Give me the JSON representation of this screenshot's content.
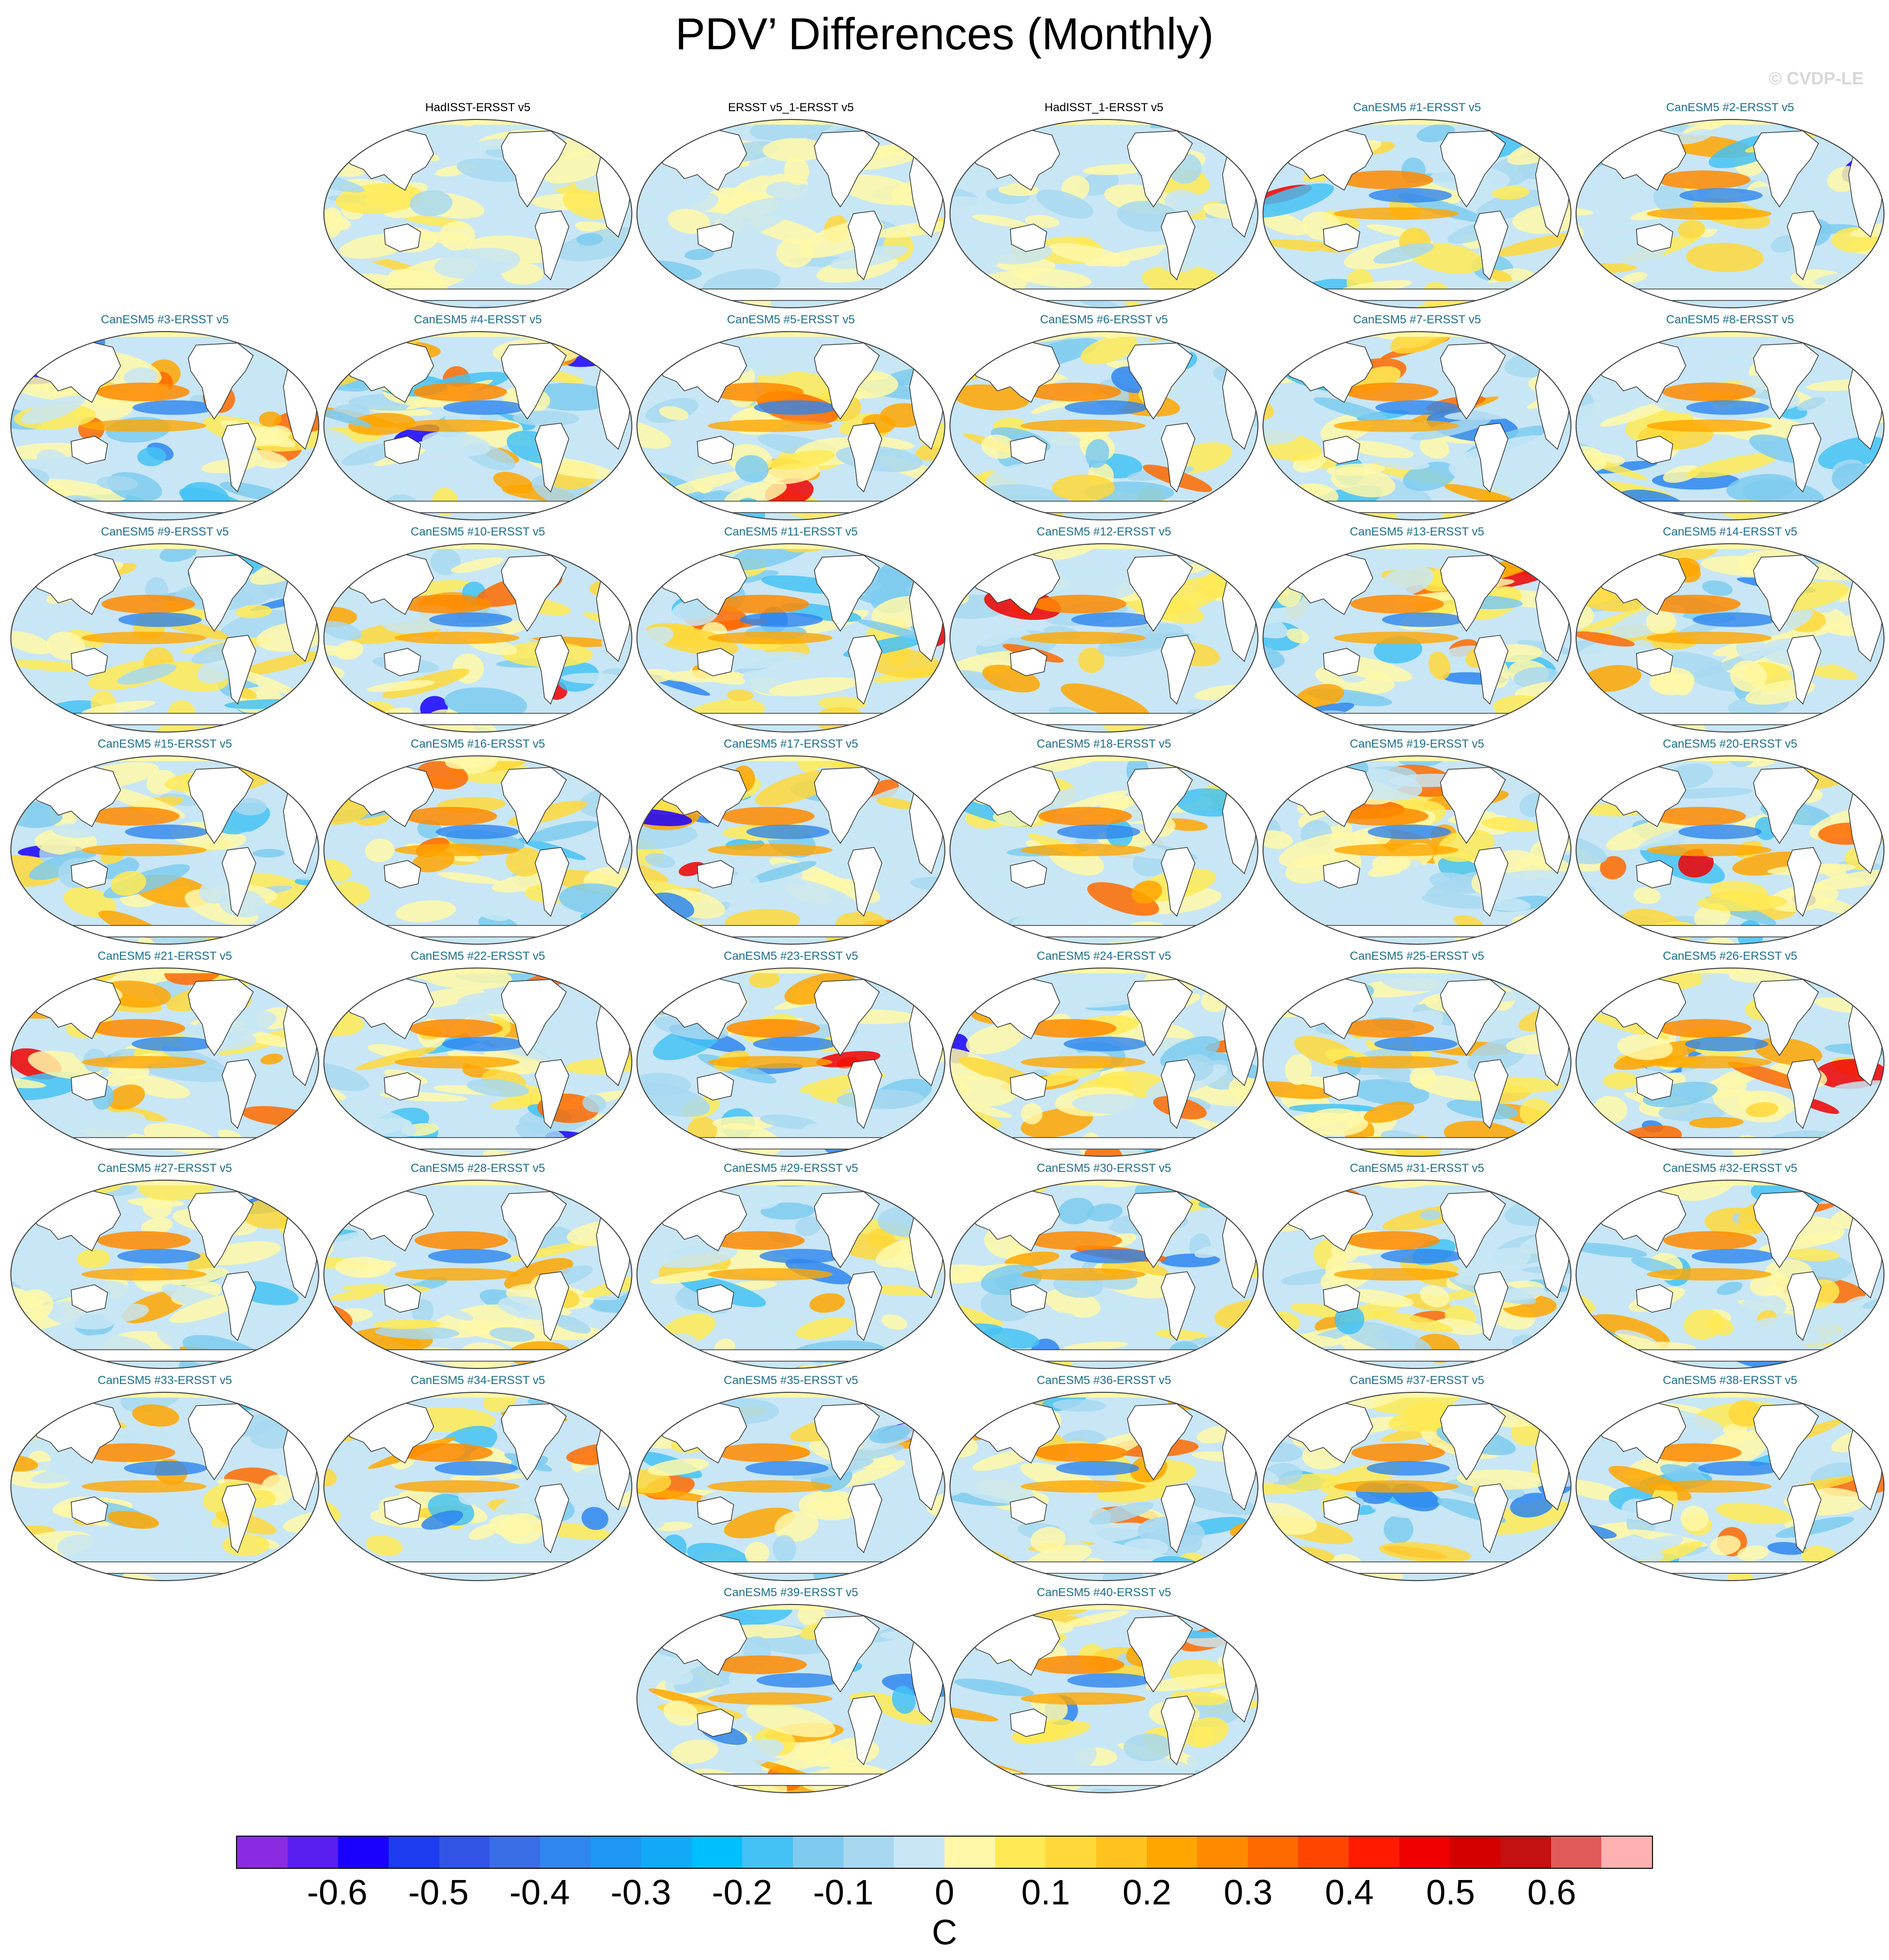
{
  "title": "PDV’ Differences (Monthly)",
  "watermark": "© CVDP-LE",
  "colors": {
    "obs_title": "#000000",
    "model_title": "#1f6f8b",
    "land": "#ffffff",
    "coast": "#333333"
  },
  "panels": [
    {
      "label": "HadISST-ERSST v5",
      "kind": "obs"
    },
    {
      "label": "ERSST v5_1-ERSST v5",
      "kind": "obs"
    },
    {
      "label": "HadISST_1-ERSST v5",
      "kind": "obs"
    },
    {
      "label": "CanESM5 #1-ERSST v5",
      "kind": "model"
    },
    {
      "label": "CanESM5 #2-ERSST v5",
      "kind": "model"
    },
    {
      "label": "CanESM5 #3-ERSST v5",
      "kind": "model"
    },
    {
      "label": "CanESM5 #4-ERSST v5",
      "kind": "model"
    },
    {
      "label": "CanESM5 #5-ERSST v5",
      "kind": "model"
    },
    {
      "label": "CanESM5 #6-ERSST v5",
      "kind": "model"
    },
    {
      "label": "CanESM5 #7-ERSST v5",
      "kind": "model"
    },
    {
      "label": "CanESM5 #8-ERSST v5",
      "kind": "model"
    },
    {
      "label": "CanESM5 #9-ERSST v5",
      "kind": "model"
    },
    {
      "label": "CanESM5 #10-ERSST v5",
      "kind": "model"
    },
    {
      "label": "CanESM5 #11-ERSST v5",
      "kind": "model"
    },
    {
      "label": "CanESM5 #12-ERSST v5",
      "kind": "model"
    },
    {
      "label": "CanESM5 #13-ERSST v5",
      "kind": "model"
    },
    {
      "label": "CanESM5 #14-ERSST v5",
      "kind": "model"
    },
    {
      "label": "CanESM5 #15-ERSST v5",
      "kind": "model"
    },
    {
      "label": "CanESM5 #16-ERSST v5",
      "kind": "model"
    },
    {
      "label": "CanESM5 #17-ERSST v5",
      "kind": "model"
    },
    {
      "label": "CanESM5 #18-ERSST v5",
      "kind": "model"
    },
    {
      "label": "CanESM5 #19-ERSST v5",
      "kind": "model"
    },
    {
      "label": "CanESM5 #20-ERSST v5",
      "kind": "model"
    },
    {
      "label": "CanESM5 #21-ERSST v5",
      "kind": "model"
    },
    {
      "label": "CanESM5 #22-ERSST v5",
      "kind": "model"
    },
    {
      "label": "CanESM5 #23-ERSST v5",
      "kind": "model"
    },
    {
      "label": "CanESM5 #24-ERSST v5",
      "kind": "model"
    },
    {
      "label": "CanESM5 #25-ERSST v5",
      "kind": "model"
    },
    {
      "label": "CanESM5 #26-ERSST v5",
      "kind": "model"
    },
    {
      "label": "CanESM5 #27-ERSST v5",
      "kind": "model"
    },
    {
      "label": "CanESM5 #28-ERSST v5",
      "kind": "model"
    },
    {
      "label": "CanESM5 #29-ERSST v5",
      "kind": "model"
    },
    {
      "label": "CanESM5 #30-ERSST v5",
      "kind": "model"
    },
    {
      "label": "CanESM5 #31-ERSST v5",
      "kind": "model"
    },
    {
      "label": "CanESM5 #32-ERSST v5",
      "kind": "model"
    },
    {
      "label": "CanESM5 #33-ERSST v5",
      "kind": "model"
    },
    {
      "label": "CanESM5 #34-ERSST v5",
      "kind": "model"
    },
    {
      "label": "CanESM5 #35-ERSST v5",
      "kind": "model"
    },
    {
      "label": "CanESM5 #36-ERSST v5",
      "kind": "model"
    },
    {
      "label": "CanESM5 #37-ERSST v5",
      "kind": "model"
    },
    {
      "label": "CanESM5 #38-ERSST v5",
      "kind": "model"
    },
    {
      "label": "CanESM5 #39-ERSST v5",
      "kind": "model"
    },
    {
      "label": "CanESM5 #40-ERSST v5",
      "kind": "model"
    }
  ],
  "colorbar": {
    "units": "C",
    "tick_labels": [
      "-0.6",
      "-0.5",
      "-0.4",
      "-0.3",
      "-0.2",
      "-0.1",
      "0",
      "0.1",
      "0.2",
      "0.3",
      "0.4",
      "0.5",
      "0.6"
    ],
    "tick_values": [
      -0.6,
      -0.5,
      -0.4,
      -0.3,
      -0.2,
      -0.1,
      0,
      0.1,
      0.2,
      0.3,
      0.4,
      0.5,
      0.6
    ],
    "range": [
      -0.7,
      0.7
    ],
    "colors": [
      "#8a2be2",
      "#5a1ef0",
      "#1a00ff",
      "#1e3cf0",
      "#3254e6",
      "#3a6ee6",
      "#2e86ee",
      "#1e96f4",
      "#12aaf7",
      "#00bfff",
      "#45c2f5",
      "#7ecbef",
      "#a8d8f0",
      "#c8e6f5",
      "#fff8a8",
      "#ffea55",
      "#ffd83a",
      "#ffc21e",
      "#ffa600",
      "#ff8a00",
      "#ff6a00",
      "#ff4500",
      "#ff1a00",
      "#f00000",
      "#d40000",
      "#c41010",
      "#e05a5a",
      "#ffb0b0"
    ]
  }
}
